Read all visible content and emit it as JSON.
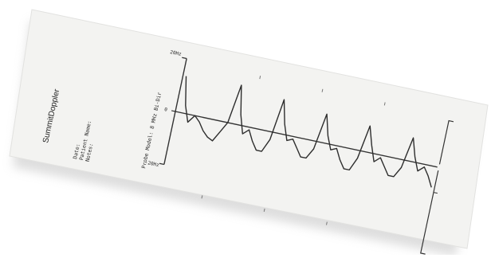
{
  "printout": {
    "brand": "SummitDoppler",
    "fields": [
      "Date:",
      "Patient Name:",
      "Notes:"
    ],
    "probe_model": "Probe Model: 8 MHz Bi-Dir"
  },
  "chart_data": {
    "type": "line",
    "title": "",
    "xlabel": "",
    "ylabel": "",
    "y_tick_labels": [
      "20Hz",
      "0",
      "-20Hz"
    ],
    "ylim": [
      -20,
      20
    ],
    "grid": false,
    "series": [
      {
        "values": [
          14,
          3,
          -3,
          0,
          -2,
          -5,
          -7,
          -8,
          -4,
          0,
          15,
          4,
          -3,
          -1,
          -5,
          -8,
          -8,
          -3,
          13,
          4,
          -2,
          -1,
          -4,
          -7,
          -7,
          -3,
          11,
          3,
          -2,
          -1,
          -5,
          -8,
          -8,
          -3,
          10,
          3,
          -3,
          -1,
          -4,
          -7,
          -7,
          -3,
          9,
          2,
          -3,
          -1,
          -4,
          -8
        ]
      }
    ]
  }
}
